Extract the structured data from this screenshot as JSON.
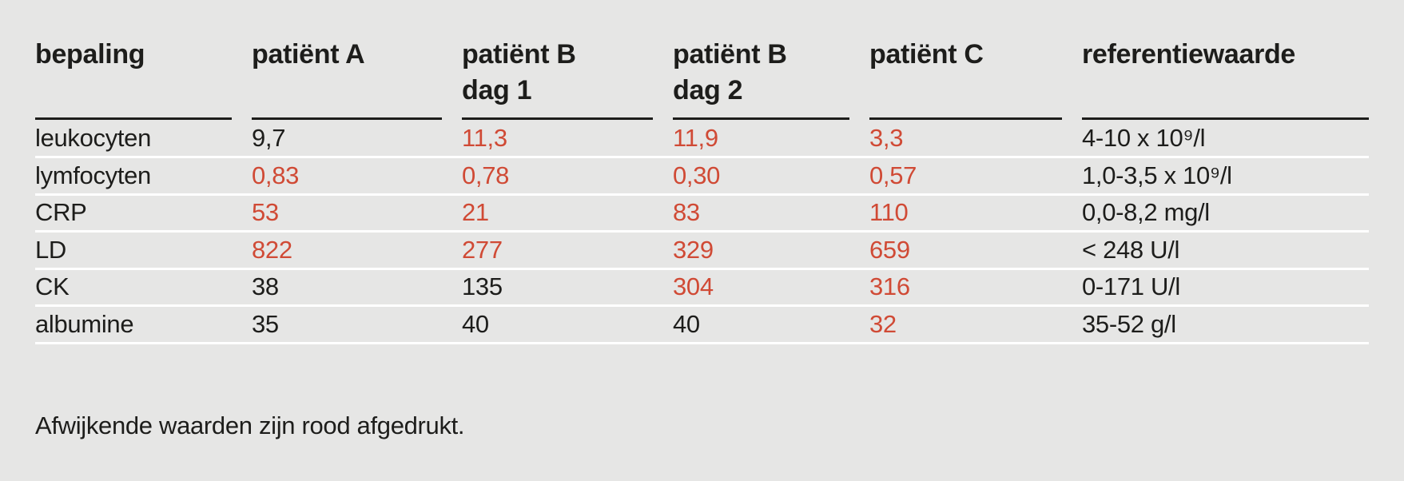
{
  "colors": {
    "background": "#e6e6e5",
    "text": "#1d1d1b",
    "abnormal": "#d04a35",
    "separator": "#ffffff"
  },
  "table": {
    "columns": [
      {
        "label": "bepaling",
        "sublabel": ""
      },
      {
        "label": "patiënt A",
        "sublabel": ""
      },
      {
        "label": "patiënt B",
        "sublabel": "dag 1"
      },
      {
        "label": "patiënt B",
        "sublabel": "dag 2"
      },
      {
        "label": "patiënt C",
        "sublabel": ""
      },
      {
        "label": "referentiewaarde",
        "sublabel": ""
      }
    ],
    "rows": [
      {
        "name": "leukocyten",
        "values": [
          {
            "text": "9,7",
            "abnormal": false
          },
          {
            "text": "11,3",
            "abnormal": true
          },
          {
            "text": "11,9",
            "abnormal": true
          },
          {
            "text": "3,3",
            "abnormal": true
          }
        ],
        "reference": "4-10 x 10⁹/l"
      },
      {
        "name": "lymfocyten",
        "values": [
          {
            "text": "0,83",
            "abnormal": true
          },
          {
            "text": "0,78",
            "abnormal": true
          },
          {
            "text": "0,30",
            "abnormal": true
          },
          {
            "text": "0,57",
            "abnormal": true
          }
        ],
        "reference": "1,0-3,5 x 10⁹/l"
      },
      {
        "name": "CRP",
        "values": [
          {
            "text": "53",
            "abnormal": true
          },
          {
            "text": "21",
            "abnormal": true
          },
          {
            "text": "83",
            "abnormal": true
          },
          {
            "text": "110",
            "abnormal": true
          }
        ],
        "reference": "0,0-8,2 mg/l"
      },
      {
        "name": "LD",
        "values": [
          {
            "text": "822",
            "abnormal": true
          },
          {
            "text": "277",
            "abnormal": true
          },
          {
            "text": "329",
            "abnormal": true
          },
          {
            "text": "659",
            "abnormal": true
          }
        ],
        "reference": "< 248 U/l"
      },
      {
        "name": "CK",
        "values": [
          {
            "text": "38",
            "abnormal": false
          },
          {
            "text": "135",
            "abnormal": false
          },
          {
            "text": "304",
            "abnormal": true
          },
          {
            "text": "316",
            "abnormal": true
          }
        ],
        "reference": "0-171 U/l"
      },
      {
        "name": "albumine",
        "values": [
          {
            "text": "35",
            "abnormal": false
          },
          {
            "text": "40",
            "abnormal": false
          },
          {
            "text": "40",
            "abnormal": false
          },
          {
            "text": "32",
            "abnormal": true
          }
        ],
        "reference": "35-52 g/l"
      }
    ]
  },
  "footer": {
    "note": "Afwijkende waarden zijn rood afgedrukt."
  }
}
